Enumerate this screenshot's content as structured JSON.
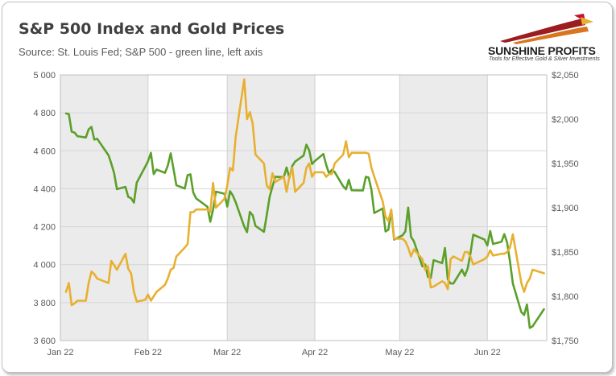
{
  "header": {
    "title": "S&P 500 Index and Gold Prices",
    "subtitle": "Source: St. Louis Fed; S&P 500 - green line, left axis"
  },
  "logo": {
    "name": "SUNSHINE PROFITS",
    "tagline": "Tools for Effective Gold & Silver Investments"
  },
  "colors": {
    "sp500": "#5ba02a",
    "gold": "#e8b030",
    "band": "#ebebeb",
    "grid": "#d6d6d6"
  },
  "chart_data": {
    "type": "line",
    "title": "S&P 500 Index and Gold Prices",
    "subtitle": "Source: St. Louis Fed; S&P 500 - green line, left axis",
    "x_range": [
      "2022-01-01",
      "2022-06-22"
    ],
    "x_tick_labels": [
      {
        "date": "2022-01-01",
        "label": "Jan 22"
      },
      {
        "date": "2022-02-01",
        "label": "Feb 22"
      },
      {
        "date": "2022-03-01",
        "label": "Mar 22"
      },
      {
        "date": "2022-04-01",
        "label": "Apr 22"
      },
      {
        "date": "2022-05-01",
        "label": "May 22"
      },
      {
        "date": "2022-06-01",
        "label": "Jun 22"
      }
    ],
    "y_left": {
      "range": [
        3600,
        5000
      ],
      "tick_values": [
        3600,
        3800,
        4000,
        4200,
        4400,
        4600,
        4800,
        5000
      ],
      "tick_labels": [
        "3 600",
        "3 800",
        "4 000",
        "4 200",
        "4 400",
        "4 600",
        "4 800",
        "5 000"
      ]
    },
    "y_right": {
      "range": [
        1750,
        2050
      ],
      "tick_values": [
        1750,
        1800,
        1850,
        1900,
        1950,
        2000,
        2050
      ],
      "tick_labels": [
        "$1,750",
        "$1,800",
        "$1,850",
        "$1,900",
        "$1,950",
        "$2,000",
        "$2,050"
      ]
    },
    "grid": true,
    "alternating_month_bands": true,
    "legend": "none",
    "series": [
      {
        "axis": "left",
        "color": "#5ba02a",
        "x": [
          "2022-01-03",
          "2022-01-04",
          "2022-01-05",
          "2022-01-06",
          "2022-01-07",
          "2022-01-10",
          "2022-01-11",
          "2022-01-12",
          "2022-01-13",
          "2022-01-14",
          "2022-01-18",
          "2022-01-19",
          "2022-01-20",
          "2022-01-21",
          "2022-01-24",
          "2022-01-25",
          "2022-01-26",
          "2022-01-27",
          "2022-01-28",
          "2022-01-31",
          "2022-02-01",
          "2022-02-02",
          "2022-02-03",
          "2022-02-04",
          "2022-02-07",
          "2022-02-08",
          "2022-02-09",
          "2022-02-10",
          "2022-02-11",
          "2022-02-14",
          "2022-02-15",
          "2022-02-16",
          "2022-02-17",
          "2022-02-18",
          "2022-02-22",
          "2022-02-23",
          "2022-02-24",
          "2022-02-25",
          "2022-02-28",
          "2022-03-01",
          "2022-03-02",
          "2022-03-03",
          "2022-03-04",
          "2022-03-07",
          "2022-03-08",
          "2022-03-09",
          "2022-03-10",
          "2022-03-11",
          "2022-03-14",
          "2022-03-15",
          "2022-03-16",
          "2022-03-17",
          "2022-03-18",
          "2022-03-21",
          "2022-03-22",
          "2022-03-23",
          "2022-03-24",
          "2022-03-25",
          "2022-03-28",
          "2022-03-29",
          "2022-03-30",
          "2022-03-31",
          "2022-04-01",
          "2022-04-04",
          "2022-04-05",
          "2022-04-06",
          "2022-04-07",
          "2022-04-08",
          "2022-04-11",
          "2022-04-12",
          "2022-04-13",
          "2022-04-14",
          "2022-04-18",
          "2022-04-19",
          "2022-04-20",
          "2022-04-21",
          "2022-04-22",
          "2022-04-25",
          "2022-04-26",
          "2022-04-27",
          "2022-04-28",
          "2022-04-29",
          "2022-05-02",
          "2022-05-03",
          "2022-05-04",
          "2022-05-05",
          "2022-05-06",
          "2022-05-09",
          "2022-05-10",
          "2022-05-11",
          "2022-05-12",
          "2022-05-13",
          "2022-05-16",
          "2022-05-17",
          "2022-05-18",
          "2022-05-19",
          "2022-05-20",
          "2022-05-23",
          "2022-05-24",
          "2022-05-25",
          "2022-05-26",
          "2022-05-27",
          "2022-05-31",
          "2022-06-01",
          "2022-06-02",
          "2022-06-03",
          "2022-06-06",
          "2022-06-07",
          "2022-06-08",
          "2022-06-09",
          "2022-06-10",
          "2022-06-13",
          "2022-06-14",
          "2022-06-15",
          "2022-06-16",
          "2022-06-17",
          "2022-06-21"
        ],
        "values": [
          4797,
          4794,
          4701,
          4696,
          4677,
          4670,
          4713,
          4726,
          4659,
          4663,
          4577,
          4533,
          4483,
          4398,
          4410,
          4357,
          4350,
          4327,
          4432,
          4516,
          4546,
          4589,
          4477,
          4501,
          4484,
          4522,
          4587,
          4504,
          4419,
          4401,
          4472,
          4476,
          4380,
          4349,
          4305,
          4226,
          4289,
          4385,
          4374,
          4306,
          4387,
          4364,
          4329,
          4201,
          4171,
          4278,
          4260,
          4204,
          4173,
          4262,
          4358,
          4412,
          4463,
          4461,
          4512,
          4457,
          4520,
          4543,
          4575,
          4632,
          4603,
          4530,
          4546,
          4583,
          4526,
          4481,
          4500,
          4488,
          4413,
          4397,
          4447,
          4392,
          4391,
          4463,
          4459,
          4394,
          4272,
          4296,
          4175,
          4184,
          4287,
          4132,
          4155,
          4175,
          4301,
          4147,
          4123,
          3991,
          4001,
          3935,
          3930,
          4024,
          4008,
          4088,
          3923,
          3901,
          3901,
          3974,
          3941,
          3979,
          4058,
          4158,
          4132,
          4101,
          4177,
          4109,
          4121,
          4161,
          4116,
          4018,
          3901,
          3750,
          3735,
          3790,
          3667,
          3675,
          3765
        ]
      },
      {
        "axis": "right",
        "color": "#e8b030",
        "x": [
          "2022-01-03",
          "2022-01-04",
          "2022-01-05",
          "2022-01-06",
          "2022-01-07",
          "2022-01-10",
          "2022-01-11",
          "2022-01-12",
          "2022-01-13",
          "2022-01-14",
          "2022-01-18",
          "2022-01-19",
          "2022-01-20",
          "2022-01-21",
          "2022-01-24",
          "2022-01-25",
          "2022-01-26",
          "2022-01-27",
          "2022-01-28",
          "2022-01-31",
          "2022-02-01",
          "2022-02-02",
          "2022-02-03",
          "2022-02-04",
          "2022-02-07",
          "2022-02-08",
          "2022-02-09",
          "2022-02-10",
          "2022-02-11",
          "2022-02-14",
          "2022-02-15",
          "2022-02-16",
          "2022-02-17",
          "2022-02-18",
          "2022-02-22",
          "2022-02-23",
          "2022-02-24",
          "2022-02-25",
          "2022-02-28",
          "2022-03-01",
          "2022-03-02",
          "2022-03-03",
          "2022-03-04",
          "2022-03-07",
          "2022-03-08",
          "2022-03-09",
          "2022-03-10",
          "2022-03-11",
          "2022-03-14",
          "2022-03-15",
          "2022-03-16",
          "2022-03-17",
          "2022-03-18",
          "2022-03-21",
          "2022-03-22",
          "2022-03-23",
          "2022-03-24",
          "2022-03-25",
          "2022-03-28",
          "2022-03-29",
          "2022-03-30",
          "2022-03-31",
          "2022-04-01",
          "2022-04-04",
          "2022-04-05",
          "2022-04-06",
          "2022-04-07",
          "2022-04-08",
          "2022-04-11",
          "2022-04-12",
          "2022-04-13",
          "2022-04-14",
          "2022-04-18",
          "2022-04-19",
          "2022-04-20",
          "2022-04-21",
          "2022-04-22",
          "2022-04-25",
          "2022-04-26",
          "2022-04-27",
          "2022-04-28",
          "2022-04-29",
          "2022-05-02",
          "2022-05-03",
          "2022-05-04",
          "2022-05-05",
          "2022-05-06",
          "2022-05-09",
          "2022-05-10",
          "2022-05-11",
          "2022-05-12",
          "2022-05-13",
          "2022-05-16",
          "2022-05-17",
          "2022-05-18",
          "2022-05-19",
          "2022-05-20",
          "2022-05-23",
          "2022-05-24",
          "2022-05-25",
          "2022-05-26",
          "2022-05-27",
          "2022-05-31",
          "2022-06-01",
          "2022-06-02",
          "2022-06-03",
          "2022-06-06",
          "2022-06-07",
          "2022-06-08",
          "2022-06-09",
          "2022-06-10",
          "2022-06-13",
          "2022-06-14",
          "2022-06-15",
          "2022-06-16",
          "2022-06-17",
          "2022-06-21"
        ],
        "values": [
          1805,
          1815,
          1790,
          1792,
          1795,
          1795,
          1815,
          1828,
          1825,
          1820,
          1815,
          1840,
          1835,
          1830,
          1848,
          1831,
          1826,
          1805,
          1794,
          1796,
          1802,
          1795,
          1800,
          1805,
          1813,
          1820,
          1830,
          1832,
          1845,
          1855,
          1859,
          1895,
          1895,
          1898,
          1898,
          1895,
          1928,
          1900,
          1910,
          1925,
          1945,
          1942,
          1980,
          2045,
          2000,
          2008,
          1995,
          1960,
          1950,
          1925,
          1921,
          1939,
          1929,
          1935,
          1918,
          1935,
          1945,
          1918,
          1928,
          1945,
          1950,
          1935,
          1940,
          1940,
          1935,
          1938,
          1938,
          1950,
          1960,
          1975,
          1957,
          1962,
          1962,
          1962,
          1961,
          1945,
          1935,
          1907,
          1890,
          1885,
          1898,
          1865,
          1865,
          1862,
          1855,
          1845,
          1853,
          1842,
          1830,
          1834,
          1810,
          1811,
          1817,
          1815,
          1808,
          1842,
          1845,
          1840,
          1850,
          1850,
          1845,
          1836,
          1842,
          1845,
          1852,
          1846,
          1848,
          1848,
          1850,
          1855,
          1870,
          1815,
          1805,
          1815,
          1820,
          1830,
          1826
        ]
      }
    ]
  }
}
